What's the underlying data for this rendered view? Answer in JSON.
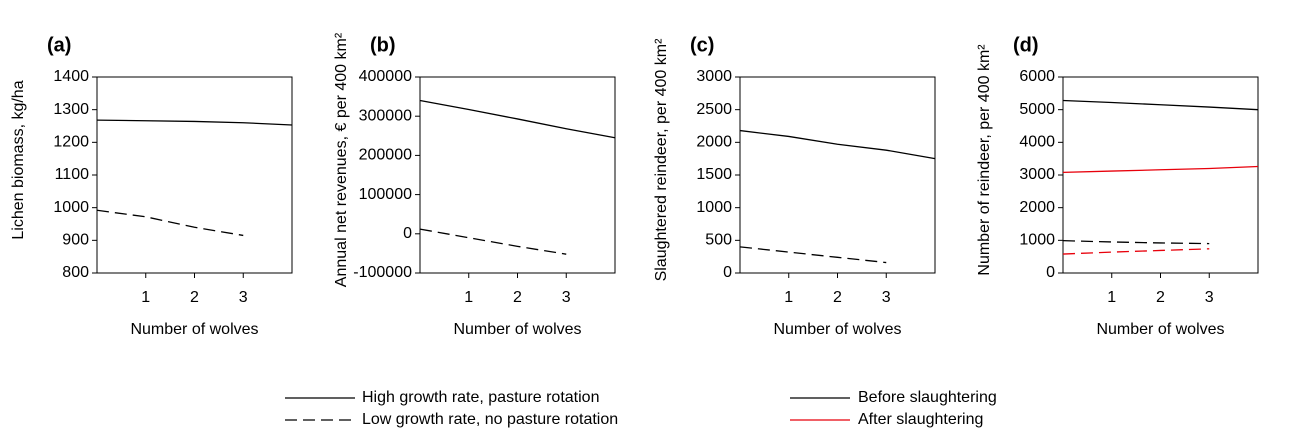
{
  "chart_data": [
    {
      "type": "line",
      "panel_label": "(a)",
      "y_label": "Lichen biomass, kg/ha",
      "x_label": "Number of wolves",
      "xlim": [
        0,
        4
      ],
      "xticks": [
        1,
        2,
        3
      ],
      "ylim": [
        800,
        1400
      ],
      "yticks": [
        800,
        900,
        1000,
        1100,
        1200,
        1300,
        1400
      ],
      "series": [
        {
          "dash": "solid",
          "color": "#000000",
          "x": [
            0,
            1,
            2,
            3,
            4
          ],
          "values": [
            1268,
            1266,
            1264,
            1260,
            1253
          ]
        },
        {
          "dash": "dashed",
          "color": "#000000",
          "x": [
            0,
            1,
            2,
            3
          ],
          "values": [
            992,
            972,
            940,
            915
          ]
        }
      ]
    },
    {
      "type": "line",
      "panel_label": "(b)",
      "y_label": "Annual net revenues, € per 400 km²",
      "x_label": "Number of wolves",
      "xlim": [
        0,
        4
      ],
      "xticks": [
        1,
        2,
        3
      ],
      "ylim": [
        -100000,
        400000
      ],
      "yticks": [
        -100000,
        0,
        100000,
        200000,
        300000,
        400000
      ],
      "series": [
        {
          "dash": "solid",
          "color": "#000000",
          "x": [
            0,
            1,
            2,
            3,
            4
          ],
          "values": [
            340000,
            317000,
            293000,
            268000,
            245000
          ]
        },
        {
          "dash": "dashed",
          "color": "#000000",
          "x": [
            0,
            1,
            2,
            3
          ],
          "values": [
            12000,
            -10000,
            -32000,
            -52000
          ]
        }
      ]
    },
    {
      "type": "line",
      "panel_label": "(c)",
      "y_label": "Slaughtered reindeer, per 400 km²",
      "x_label": "Number of wolves",
      "xlim": [
        0,
        4
      ],
      "xticks": [
        1,
        2,
        3
      ],
      "ylim": [
        0,
        3000
      ],
      "yticks": [
        0,
        500,
        1000,
        1500,
        2000,
        2500,
        3000
      ],
      "series": [
        {
          "dash": "solid",
          "color": "#000000",
          "x": [
            0,
            1,
            2,
            3,
            4
          ],
          "values": [
            2180,
            2090,
            1970,
            1880,
            1750
          ]
        },
        {
          "dash": "dashed",
          "color": "#000000",
          "x": [
            0,
            1,
            2,
            3
          ],
          "values": [
            400,
            320,
            240,
            160
          ]
        }
      ]
    },
    {
      "type": "line",
      "panel_label": "(d)",
      "y_label": "Number of reindeer, per 400 km²",
      "x_label": "Number of wolves",
      "xlim": [
        0,
        4
      ],
      "xticks": [
        1,
        2,
        3
      ],
      "ylim": [
        0,
        6000
      ],
      "yticks": [
        0,
        1000,
        2000,
        3000,
        4000,
        5000,
        6000
      ],
      "series": [
        {
          "dash": "solid",
          "color": "#000000",
          "x": [
            0,
            1,
            2,
            3,
            4
          ],
          "values": [
            5280,
            5220,
            5150,
            5080,
            5000
          ]
        },
        {
          "dash": "solid",
          "color": "#e8000b",
          "x": [
            0,
            1,
            2,
            3,
            4
          ],
          "values": [
            3080,
            3120,
            3160,
            3200,
            3260
          ]
        },
        {
          "dash": "dashed",
          "color": "#000000",
          "x": [
            0,
            1,
            2,
            3
          ],
          "values": [
            990,
            950,
            920,
            900
          ]
        },
        {
          "dash": "dashed",
          "color": "#e8000b",
          "x": [
            0,
            1,
            2,
            3
          ],
          "values": [
            580,
            640,
            690,
            740
          ]
        }
      ]
    }
  ],
  "legend": {
    "line_styles": [
      {
        "label": "High growth rate, pasture rotation",
        "dash": "solid"
      },
      {
        "label": "Low growth rate, no pasture rotation",
        "dash": "dashed"
      }
    ],
    "colors": [
      {
        "label": "Before slaughtering",
        "color": "#000000"
      },
      {
        "label": "After slaughtering",
        "color": "#e8000b"
      }
    ]
  }
}
